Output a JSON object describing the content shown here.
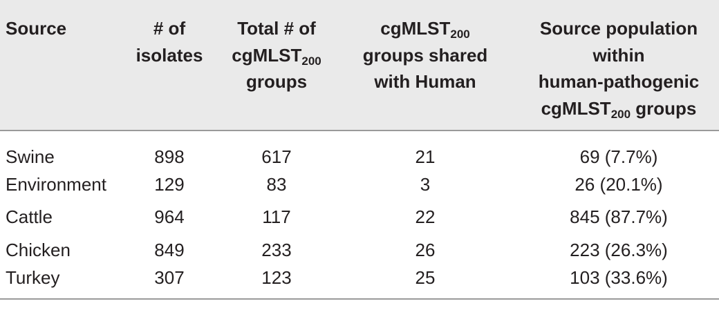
{
  "table": {
    "headers": {
      "source": "Source",
      "isolates": [
        "# of",
        "isolates"
      ],
      "total_groups": {
        "line1": "Total # of",
        "line2_main": "cgMLST",
        "line2_sub": "200",
        "line3": "groups"
      },
      "shared_groups": {
        "line1_main": "cgMLST",
        "line1_sub": "200",
        "line2": "groups shared",
        "line3": "with Human"
      },
      "source_population": {
        "line1": "Source population",
        "line2": "within",
        "line3": "human-pathogenic",
        "line4_main": "cgMLST",
        "line4_sub": "200",
        "line4_tail": " groups"
      }
    },
    "rows": [
      {
        "source": "Swine",
        "isolates": "898",
        "total_groups": "617",
        "shared": "21",
        "population": "69 (7.7%)"
      },
      {
        "source": "Environment",
        "isolates": "129",
        "total_groups": "83",
        "shared": "3",
        "population": "26 (20.1%)"
      },
      {
        "source": "Cattle",
        "isolates": "964",
        "total_groups": "117",
        "shared": "22",
        "population": "845 (87.7%)"
      },
      {
        "source": "Chicken",
        "isolates": "849",
        "total_groups": "233",
        "shared": "26",
        "population": "223 (26.3%)"
      },
      {
        "source": "Turkey",
        "isolates": "307",
        "total_groups": "123",
        "shared": "25",
        "population": "103 (33.6%)"
      }
    ]
  }
}
